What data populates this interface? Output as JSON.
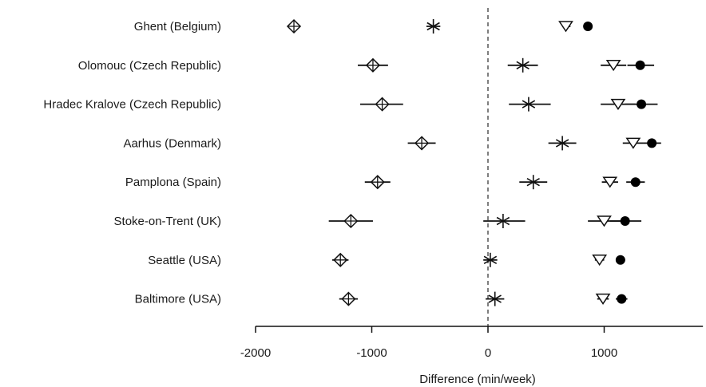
{
  "chart_data": {
    "type": "scatter",
    "title": "",
    "xlabel": "Difference (min/week)",
    "ylabel": "",
    "xlim": [
      -2000,
      1850
    ],
    "xticks": [
      -2000,
      -1000,
      0,
      1000
    ],
    "xtick_labels": [
      "-2000",
      "-1000",
      "0",
      "1000"
    ],
    "reference_line": {
      "x": 0,
      "style": "dashed"
    },
    "grid": false,
    "legend": "none",
    "categories": [
      "Ghent (Belgium)",
      "Olomouc (Czech Republic)",
      "Hradec Kralove (Czech Republic)",
      "Aarhus (Denmark)",
      "Pamplona (Spain)",
      "Stoke-on-Trent (UK)",
      "Seattle (USA)",
      "Baltimore (USA)"
    ],
    "series": [
      {
        "marker": "diamond-cross",
        "points": [
          {
            "x": -1670,
            "lo": -1710,
            "hi": -1630
          },
          {
            "x": -990,
            "lo": -1120,
            "hi": -860
          },
          {
            "x": -910,
            "lo": -1100,
            "hi": -730
          },
          {
            "x": -570,
            "lo": -690,
            "hi": -450
          },
          {
            "x": -950,
            "lo": -1060,
            "hi": -840
          },
          {
            "x": -1180,
            "lo": -1370,
            "hi": -990
          },
          {
            "x": -1270,
            "lo": -1340,
            "hi": -1200
          },
          {
            "x": -1200,
            "lo": -1280,
            "hi": -1120
          }
        ]
      },
      {
        "marker": "asterisk",
        "points": [
          {
            "x": -470,
            "lo": -530,
            "hi": -410
          },
          {
            "x": 300,
            "lo": 170,
            "hi": 430
          },
          {
            "x": 350,
            "lo": 180,
            "hi": 540
          },
          {
            "x": 640,
            "lo": 520,
            "hi": 760
          },
          {
            "x": 390,
            "lo": 270,
            "hi": 510
          },
          {
            "x": 130,
            "lo": -40,
            "hi": 320
          },
          {
            "x": 20,
            "lo": -40,
            "hi": 80
          },
          {
            "x": 60,
            "lo": -20,
            "hi": 140
          }
        ]
      },
      {
        "marker": "triangle-down-open",
        "points": [
          {
            "x": 670,
            "lo": 640,
            "hi": 710
          },
          {
            "x": 1080,
            "lo": 970,
            "hi": 1190
          },
          {
            "x": 1120,
            "lo": 970,
            "hi": 1270
          },
          {
            "x": 1250,
            "lo": 1160,
            "hi": 1340
          },
          {
            "x": 1050,
            "lo": 980,
            "hi": 1120
          },
          {
            "x": 1000,
            "lo": 860,
            "hi": 1140
          },
          {
            "x": 960,
            "lo": 920,
            "hi": 1000
          },
          {
            "x": 990,
            "lo": 940,
            "hi": 1040
          }
        ]
      },
      {
        "marker": "circle-filled",
        "points": [
          {
            "x": 860,
            "lo": 830,
            "hi": 890
          },
          {
            "x": 1310,
            "lo": 1200,
            "hi": 1430
          },
          {
            "x": 1320,
            "lo": 1180,
            "hi": 1460
          },
          {
            "x": 1410,
            "lo": 1340,
            "hi": 1490
          },
          {
            "x": 1270,
            "lo": 1190,
            "hi": 1350
          },
          {
            "x": 1180,
            "lo": 1050,
            "hi": 1320
          },
          {
            "x": 1140,
            "lo": 1100,
            "hi": 1180
          },
          {
            "x": 1150,
            "lo": 1100,
            "hi": 1200
          }
        ]
      }
    ]
  }
}
